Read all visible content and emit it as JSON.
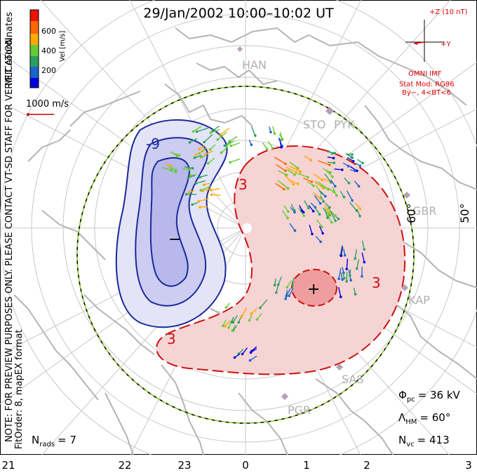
{
  "title": "29/Jan/2002  10:00–10:02 UT",
  "colorbar": {
    "label": "Vel [m/s]",
    "ticks": [
      "600",
      "400",
      "200"
    ],
    "colors": [
      "#0000dd",
      "#1a66cc",
      "#2aa060",
      "#66cc33",
      "#ffaa00",
      "#ff6600",
      "#ee1100"
    ]
  },
  "coords_label": "MLT coordinates",
  "ref_vector": {
    "label": "1000 m/s",
    "color": "#cc0000"
  },
  "side_note": "NOTE: FOR PREVIEW PURPOSES ONLY. PLEASE CONTACT VT-SD STAFF FOR VERIFICATION.",
  "fit_label": "FitOrder: 8, mapEX format",
  "imf": {
    "label_top": "+Z (10 nT)",
    "label_y": "+Y",
    "source": "OMNI IMF",
    "model": "Stat Mod: RG96",
    "condition": "By−, 4<BT<6",
    "color": "#dd0000"
  },
  "contours": {
    "neg_label": "-9",
    "pos_labels": [
      "3",
      "3",
      "3"
    ],
    "neg_center": "−",
    "pos_center": "+",
    "neg_color": "#1a2a9a",
    "pos_color": "#cc1111",
    "boundary_colors": [
      "#000000",
      "#88cc22"
    ]
  },
  "stations": [
    "HAN",
    "STO",
    "PYK",
    "GBR",
    "KAP",
    "SAS",
    "PGR"
  ],
  "lat_labels": [
    "60°",
    "50°"
  ],
  "stats": {
    "phi_pc_sym": "Φ",
    "phi_pc_sub": "pc",
    "phi_pc_val": "= 36 kV",
    "lambda_hm_sym": "Λ",
    "lambda_hm_sub": "HM",
    "lambda_hm_val": "= 60°",
    "n_vc_sym": "N",
    "n_vc_sub": "vc",
    "n_vc_val": "= 413",
    "n_rads_sym": "N",
    "n_rads_sub": "rads",
    "n_rads_val": "= 7"
  },
  "mlt_ticks": [
    "21",
    "22",
    "23",
    "0",
    "1",
    "2",
    "3"
  ]
}
